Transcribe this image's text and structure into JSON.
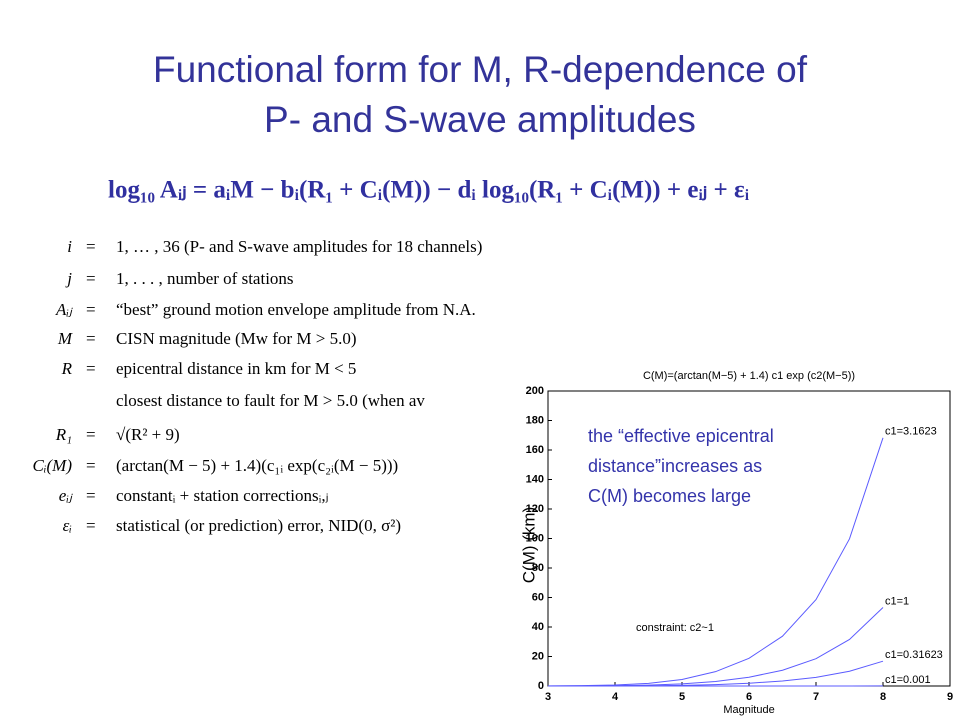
{
  "slide": {
    "title_lines": [
      "Functional form for M, R-dependence of",
      "P- and S-wave amplitudes"
    ],
    "equation": "log₁₀ Aᵢⱼ = aᵢM − bᵢ(R₁ + Cᵢ(M)) − dᵢ log₁₀(R₁ + Cᵢ(M)) + eᵢⱼ + εᵢ",
    "equals": "=",
    "definitions": [
      {
        "symbol": "i",
        "text": "1, … , 36 (P- and S-wave amplitudes for 18 channels)"
      },
      {
        "symbol": "j",
        "text": "1, . . . ,  number of stations"
      },
      {
        "symbol": "Aᵢⱼ",
        "text": "“best” ground motion envelope amplitude from N.A."
      },
      {
        "symbol": "M",
        "text": "CISN magnitude (Mw for M > 5.0)"
      },
      {
        "symbol": "R",
        "text": "epicentral distance in km for M < 5"
      },
      {
        "text": "closest distance to fault for M > 5.0 (when av"
      },
      {
        "symbol": "R₁",
        "text": "√(R² + 9)"
      },
      {
        "symbol": "Cᵢ(M)",
        "text": "(arctan(M − 5) + 1.4)(c₁ᵢ exp(c₂ᵢ(M − 5)))"
      },
      {
        "symbol": "eᵢⱼ",
        "text": "constantᵢ + station correctionsᵢ,ⱼ"
      },
      {
        "symbol": "εᵢ",
        "text": "statistical (or prediction) error, NID(0, σ²)"
      }
    ]
  },
  "chart_data": {
    "type": "line",
    "title": "C(M)=(arctan(M−5) + 1.4) c1 exp (c2(M−5))",
    "x_label": "Magnitude",
    "y_label": "C(M) (km)",
    "annotation_lines": [
      "the “effective epicentral",
      "distance”increases as",
      "C(M) becomes large"
    ],
    "constraint": "constraint: c2~1",
    "x": [
      3,
      3.5,
      4,
      4.5,
      5,
      5.5,
      6,
      6.5,
      7,
      7.5,
      8
    ],
    "series": [
      {
        "name": "c1=3.1623",
        "color": "#5b5bff",
        "values": [
          0.125,
          0.294,
          0.715,
          1.796,
          4.427,
          9.718,
          18.79,
          33.77,
          58.58,
          99.79,
          168.26
        ]
      },
      {
        "name": "c1=1",
        "color": "#5b5bff",
        "values": [
          0.0396,
          0.0931,
          0.2261,
          0.568,
          1.4,
          3.073,
          5.941,
          10.679,
          18.525,
          31.556,
          53.21
        ]
      },
      {
        "name": "c1=0.31623",
        "color": "#5b5bff",
        "values": [
          0.0125,
          0.0294,
          0.0715,
          0.18,
          0.443,
          0.972,
          1.879,
          3.377,
          5.858,
          9.979,
          16.83
        ]
      },
      {
        "name": "c1=0.001",
        "color": "#5b5bff",
        "values": [
          4e-05,
          9e-05,
          0.00023,
          0.00057,
          0.0014,
          0.0031,
          0.0059,
          0.0107,
          0.0185,
          0.0316,
          0.0532
        ]
      }
    ],
    "xlim": [
      3,
      9
    ],
    "xticks": [
      3,
      4,
      5,
      6,
      7,
      8,
      9
    ],
    "ylim": [
      0,
      200
    ],
    "yticks": [
      0,
      20,
      40,
      60,
      80,
      100,
      120,
      140,
      160,
      180,
      200
    ]
  }
}
